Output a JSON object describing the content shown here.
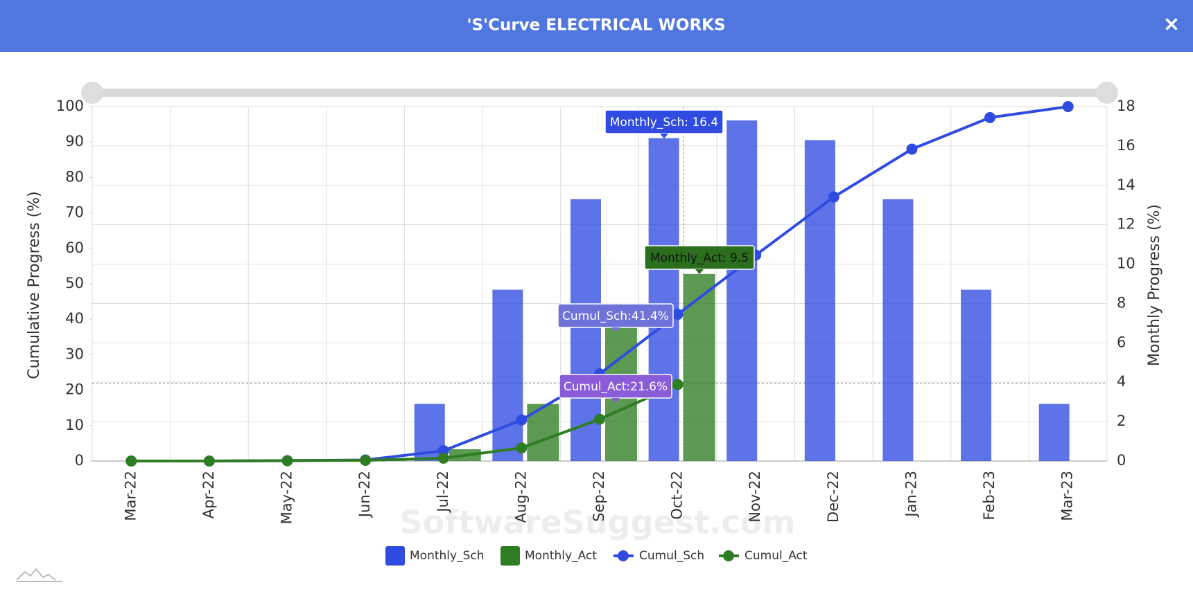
{
  "header": {
    "title": "'S'Curve ELECTRICAL WORKS",
    "close": "×"
  },
  "chart_data": {
    "type": "bar",
    "categories": [
      "Mar-22",
      "Apr-22",
      "May-22",
      "Jun-22",
      "Jul-22",
      "Aug-22",
      "Sep-22",
      "Oct-22",
      "Nov-22",
      "Dec-22",
      "Jan-23",
      "Feb-23",
      "Mar-23"
    ],
    "series": [
      {
        "name": "Monthly_Sch",
        "type": "bar",
        "axis": "y2",
        "color": "#2f4be0",
        "values": [
          0,
          0,
          0,
          0,
          2.9,
          8.7,
          13.3,
          16.4,
          17.3,
          16.3,
          13.3,
          8.7,
          2.9
        ]
      },
      {
        "name": "Monthly_Act",
        "type": "bar",
        "axis": "y2",
        "color": "#2e7d22",
        "values": [
          0,
          0,
          0.1,
          0.1,
          0.6,
          2.9,
          6.9,
          9.5,
          null,
          null,
          null,
          null,
          null
        ]
      },
      {
        "name": "Cumul_Sch",
        "type": "line",
        "color": "#2f4be0",
        "values": [
          0,
          0,
          0.1,
          0.3,
          2.9,
          11.6,
          24.6,
          41.4,
          58.1,
          74.5,
          88.0,
          96.9,
          100
        ]
      },
      {
        "name": "Cumul_Act",
        "type": "line",
        "color": "#2e7d22",
        "values": [
          0,
          0,
          0.1,
          0.2,
          0.8,
          3.7,
          11.8,
          21.6,
          null,
          null,
          null,
          null,
          null
        ]
      }
    ],
    "ylabel": "Cumulative Progress (%)",
    "y2label": "Monthly Progress (%)",
    "ylim": [
      0,
      100
    ],
    "yticks": [
      0,
      10,
      20,
      30,
      40,
      50,
      60,
      70,
      80,
      90,
      100
    ],
    "y2lim": [
      0,
      18
    ],
    "y2ticks": [
      0,
      2,
      4,
      6,
      8,
      10,
      12,
      14,
      16,
      18
    ],
    "grid": true,
    "legend": "bottom",
    "tooltips": [
      "Monthly_Sch: 16.4",
      "Monthly_Act: 9.5",
      "Cumul_Sch:41.4%",
      "Cumul_Act:21.6%"
    ],
    "watermark": "SoftwareSuggest.com"
  }
}
